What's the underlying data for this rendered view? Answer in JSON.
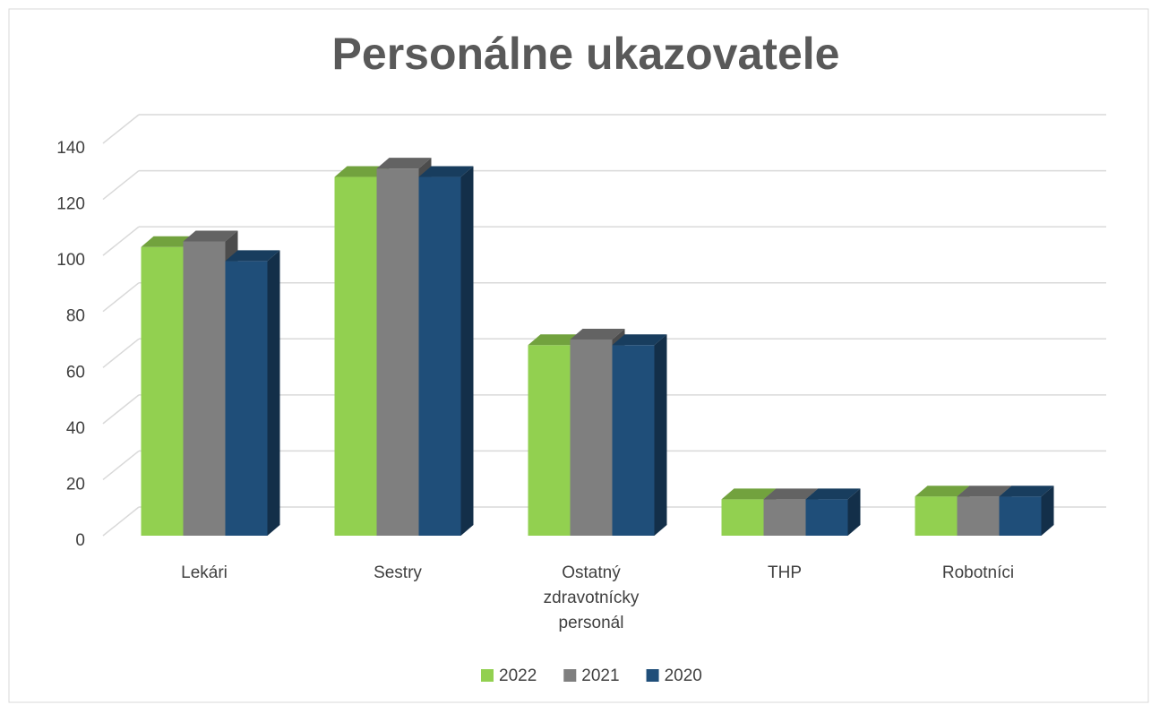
{
  "chart_data": {
    "type": "bar3d",
    "title": "Personálne ukazovatele",
    "categories": [
      "Lekári",
      "Sestry",
      "Ostatný zdravotnícky personál",
      "THP",
      "Robotníci"
    ],
    "series": [
      {
        "name": "2022",
        "color": "#92d050",
        "values": [
          103,
          128,
          68,
          13,
          14
        ]
      },
      {
        "name": "2021",
        "color": "#7f7f7f",
        "values": [
          105,
          131,
          70,
          13,
          14
        ]
      },
      {
        "name": "2020",
        "color": "#1f4e79",
        "values": [
          98,
          128,
          68,
          13,
          14
        ]
      }
    ],
    "ylim": [
      0,
      140
    ],
    "yticks": [
      0,
      20,
      40,
      60,
      80,
      100,
      120,
      140
    ],
    "grid": true,
    "legend": "bottom"
  }
}
